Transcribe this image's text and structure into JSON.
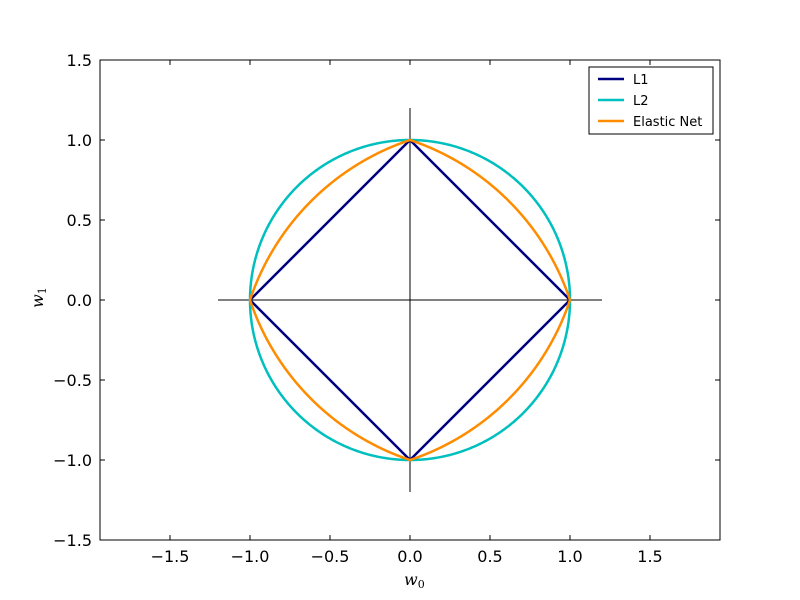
{
  "chart_data": {
    "type": "line",
    "xlabel": "w",
    "xlabel_sub": "0",
    "ylabel": "w",
    "ylabel_sub": "1",
    "xlim": [
      -1.9375,
      1.9375
    ],
    "ylim": [
      -1.5,
      1.5
    ],
    "xticks": [
      -1.5,
      -1.0,
      -0.5,
      0.0,
      0.5,
      1.0,
      1.5
    ],
    "xtick_labels": [
      "−1.5",
      "−1.0",
      "−0.5",
      "0.0",
      "0.5",
      "1.0",
      "1.5"
    ],
    "yticks": [
      -1.5,
      -1.0,
      -0.5,
      0.0,
      0.5,
      1.0,
      1.5
    ],
    "ytick_labels": [
      "−1.5",
      "−1.0",
      "−0.5",
      "0.0",
      "0.5",
      "1.0",
      "1.5"
    ],
    "grid": false,
    "legend_position": "top-right",
    "axis_lines": {
      "x": [
        -1.2,
        1.2
      ],
      "y": [
        -1.2,
        1.2
      ],
      "color": "#000000"
    },
    "series": [
      {
        "name": "L1",
        "color": "#000080",
        "norm": "L1",
        "level": 1.0,
        "points": [
          [
            1,
            0
          ],
          [
            0,
            1
          ],
          [
            -1,
            0
          ],
          [
            0,
            -1
          ],
          [
            1,
            0
          ]
        ]
      },
      {
        "name": "L2",
        "color": "#00bfbf",
        "norm": "L2",
        "level": 1.0
      },
      {
        "name": "Elastic Net",
        "color": "#ff8c00",
        "norm": "elastic-net",
        "l1_ratio": 0.5,
        "level": 1.0
      }
    ]
  }
}
